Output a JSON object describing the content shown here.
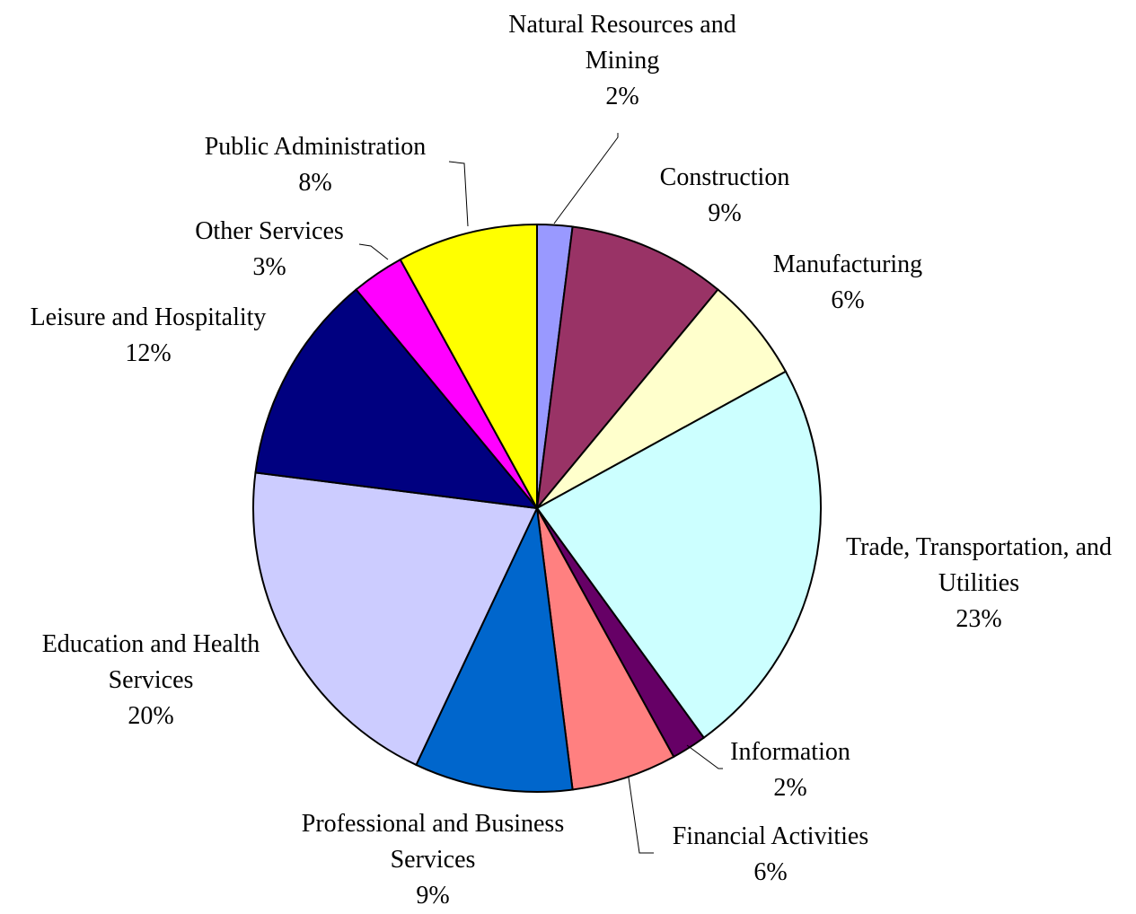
{
  "chart_data": {
    "type": "pie",
    "categories": [
      "Natural Resources and Mining",
      "Construction",
      "Manufacturing",
      "Trade, Transportation, and Utilities",
      "Information",
      "Financial Activities",
      "Professional and Business Services",
      "Education and Health Services",
      "Leisure and Hospitality",
      "Other Services",
      "Public Administration"
    ],
    "values": [
      2,
      9,
      6,
      23,
      2,
      6,
      9,
      20,
      12,
      3,
      8
    ],
    "value_labels": [
      "2%",
      "9%",
      "6%",
      "23%",
      "2%",
      "6%",
      "9%",
      "20%",
      "12%",
      "3%",
      "8%"
    ],
    "colors": [
      "#9999ff",
      "#993366",
      "#ffffcc",
      "#ccffff",
      "#660066",
      "#ff8080",
      "#0066cc",
      "#ccccff",
      "#000080",
      "#ff00ff",
      "#ffff00"
    ]
  }
}
